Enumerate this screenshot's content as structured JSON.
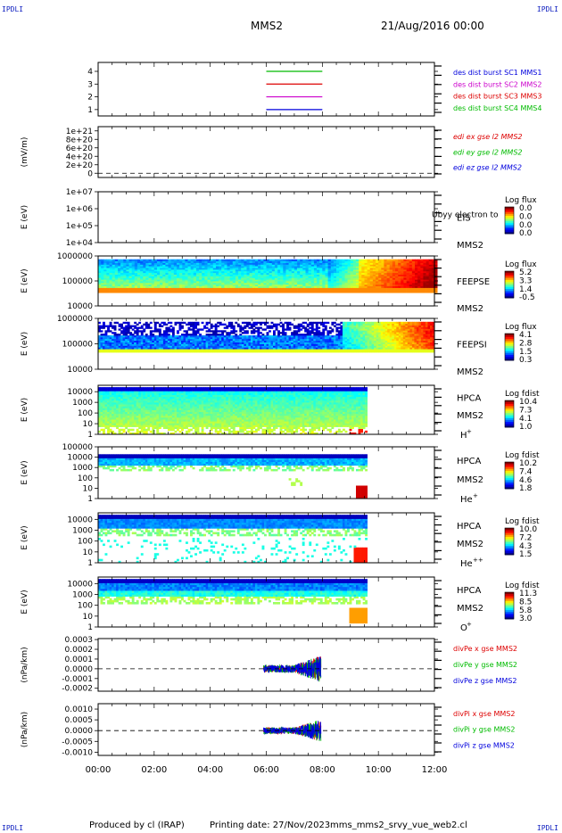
{
  "header": {
    "corner_label": "IPDLI",
    "spacecraft": "MMS2",
    "date_time": "21/Aug/2016 00:00"
  },
  "footer": {
    "produced_by": "Produced by cl (IRAP)",
    "printing_date": "Printing date: 27/Nov/2023",
    "filename": "mms_mms2_srvy_vue_web2.cl"
  },
  "chart_data": {
    "type": "multi-panel time series",
    "x_ticks": [
      "00:00",
      "02:00",
      "04:00",
      "06:00",
      "08:00",
      "10:00",
      "12:00"
    ],
    "x_range_hours": [
      0,
      12
    ],
    "panels": [
      {
        "id": "burst",
        "type": "line",
        "y_ticks": [
          "4",
          "3",
          "2",
          "1"
        ],
        "y_range": [
          0.5,
          4.7
        ],
        "segments_hours": [
          6.0,
          8.0
        ],
        "series": [
          {
            "name": "des dist burst SC1 MMS1",
            "value": 1,
            "color": "#0000dd"
          },
          {
            "name": "des dist burst SC2 MMS2",
            "value": 2,
            "color": "#cc00cc"
          },
          {
            "name": "des dist burst SC3 MMS3",
            "value": 3,
            "color": "#dd0000"
          },
          {
            "name": "des dist burst SC4 MMS4",
            "value": 4,
            "color": "#00bb00"
          }
        ]
      },
      {
        "id": "edi",
        "type": "line",
        "ylabel": "(mV/m)",
        "y_ticks": [
          "1e+21",
          "8e+20",
          "6e+20",
          "4e+20",
          "2e+20",
          "0"
        ],
        "y_range": [
          -1e+20,
          1.1e+21
        ],
        "series": [
          {
            "name": "edi ex gse l2 MMS2",
            "color": "#dd0000"
          },
          {
            "name": "edi ey gse l2 MMS2",
            "color": "#00bb00"
          },
          {
            "name": "edi ez gse l2 MMS2",
            "color": "#0000dd"
          }
        ]
      },
      {
        "id": "eis",
        "type": "heatmap",
        "ylabel": "E (eV)",
        "y_ticks": [
          "1e+07",
          "1e+06",
          "1e+05",
          "1e+04"
        ],
        "log_y": true,
        "y_range": [
          10000,
          10000000
        ],
        "instrument": [
          "EIS",
          "MMS2"
        ],
        "overlay_text": "Ubyy electron to",
        "colorbar": {
          "title": "Log flux",
          "labels": [
            "0.0",
            "0.0",
            "0.0",
            "0.0"
          ]
        }
      },
      {
        "id": "feepse",
        "type": "heatmap",
        "ylabel": "E (eV)",
        "y_ticks": [
          "1000000",
          "100000",
          "10000"
        ],
        "log_y": true,
        "y_range": [
          10000,
          1000000
        ],
        "instrument": [
          "FEEPSE",
          "MMS2"
        ],
        "colorbar": {
          "title": "Log flux",
          "labels": [
            "5.2",
            "3.3",
            "1.4",
            "-0.5"
          ]
        }
      },
      {
        "id": "feepsi",
        "type": "heatmap",
        "ylabel": "E (eV)",
        "y_ticks": [
          "1000000",
          "100000",
          "10000"
        ],
        "log_y": true,
        "y_range": [
          10000,
          1000000
        ],
        "instrument": [
          "FEEPSI",
          "MMS2"
        ],
        "colorbar": {
          "title": "Log flux",
          "labels": [
            "4.1",
            "2.8",
            "1.5",
            "0.3"
          ]
        }
      },
      {
        "id": "hpca_h",
        "type": "heatmap",
        "ylabel": "E (eV)",
        "y_ticks": [
          "10000",
          "1000",
          "100",
          "10",
          "1"
        ],
        "log_y": true,
        "y_range": [
          1,
          40000
        ],
        "instrument": [
          "HPCA",
          "MMS2"
        ],
        "species": "H",
        "species_sup": "+",
        "colorbar": {
          "title": "Log fdist",
          "labels": [
            "10.4",
            "7.3",
            "4.1",
            "1.0"
          ]
        }
      },
      {
        "id": "hpca_he1",
        "type": "heatmap",
        "ylabel": "E (eV)",
        "y_ticks": [
          "100000",
          "10000",
          "1000",
          "100",
          "10",
          "1"
        ],
        "log_y": true,
        "y_range": [
          1,
          100000
        ],
        "instrument": [
          "HPCA",
          "MMS2"
        ],
        "species": "He",
        "species_sup": "+",
        "colorbar": {
          "title": "Log fdist",
          "labels": [
            "10.2",
            "7.4",
            "4.6",
            "1.8"
          ]
        }
      },
      {
        "id": "hpca_he2",
        "type": "heatmap",
        "ylabel": "E (eV)",
        "y_ticks": [
          "10000",
          "1000",
          "100",
          "10",
          "1"
        ],
        "log_y": true,
        "y_range": [
          1,
          40000
        ],
        "instrument": [
          "HPCA",
          "MMS2"
        ],
        "species": "He",
        "species_sup": "++",
        "colorbar": {
          "title": "Log fdist",
          "labels": [
            "10.0",
            "7.2",
            "4.3",
            "1.5"
          ]
        }
      },
      {
        "id": "hpca_o",
        "type": "heatmap",
        "ylabel": "E (eV)",
        "y_ticks": [
          "10000",
          "1000",
          "100",
          "10",
          "1"
        ],
        "log_y": true,
        "y_range": [
          1,
          40000
        ],
        "instrument": [
          "HPCA",
          "MMS2"
        ],
        "species": "O",
        "species_sup": "+",
        "colorbar": {
          "title": "Log fdist",
          "labels": [
            "11.3",
            "8.5",
            "5.8",
            "3.0"
          ]
        }
      },
      {
        "id": "divpe",
        "type": "line",
        "ylabel": "(nPa/km)",
        "y_ticks": [
          "0.0003",
          "0.0002",
          "0.0001",
          "0.0000",
          "-0.0001",
          "-0.0002"
        ],
        "y_range": [
          -0.00023,
          0.00031
        ],
        "data_span_hours": [
          5.9,
          7.95
        ],
        "series": [
          {
            "name": "divPe x gse MMS2",
            "color": "#dd0000"
          },
          {
            "name": "divPe y gse MMS2",
            "color": "#00bb00"
          },
          {
            "name": "divPe z gse MMS2",
            "color": "#0000dd"
          }
        ]
      },
      {
        "id": "divpi",
        "type": "line",
        "ylabel": "(nPa/km)",
        "y_ticks": [
          "0.0010",
          "0.0005",
          "0.0000",
          "-0.0005",
          "-0.0010"
        ],
        "y_range": [
          -0.00115,
          0.00125
        ],
        "data_span_hours": [
          5.9,
          7.95
        ],
        "series": [
          {
            "name": "divPi x gse MMS2",
            "color": "#dd0000"
          },
          {
            "name": "divPi y gse MMS2",
            "color": "#00bb00"
          },
          {
            "name": "divPi z gse MMS2",
            "color": "#0000dd"
          }
        ]
      }
    ]
  }
}
